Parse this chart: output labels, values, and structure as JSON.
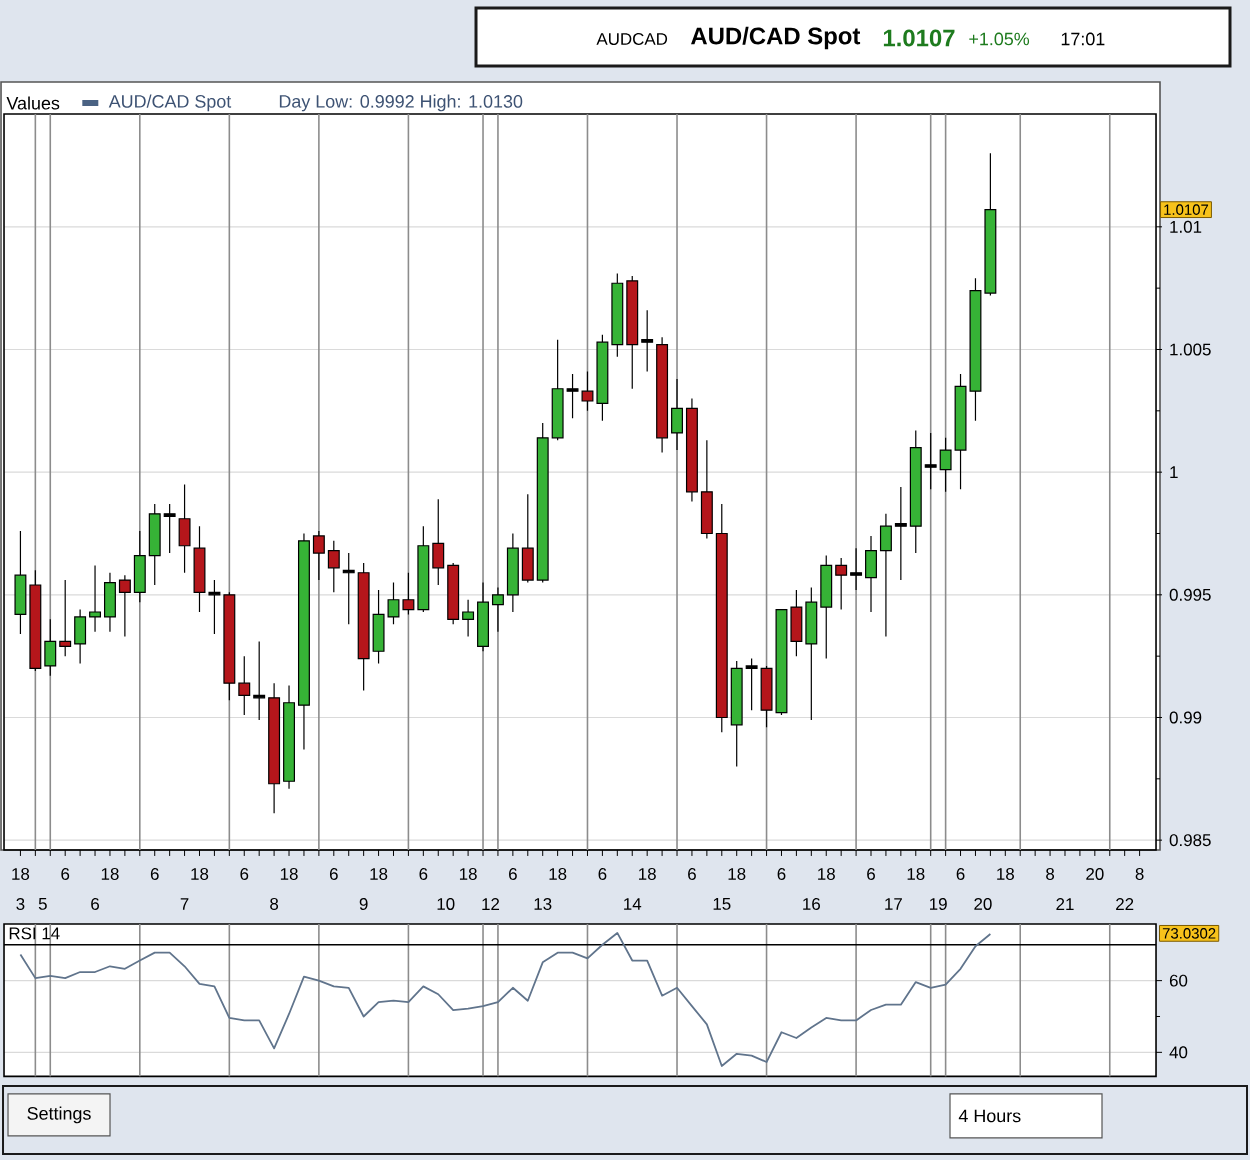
{
  "chart_data": [
    {
      "type": "candlestick",
      "title": "AUD/CAD Spot",
      "legend_title": "Values",
      "legend": "top left",
      "grid": true,
      "categories": [
        "18",
        null,
        null,
        "6",
        null,
        null,
        "18",
        null,
        null,
        "6",
        null,
        null,
        "18",
        null,
        null,
        "6",
        null,
        null,
        "18",
        null,
        null,
        "6",
        null,
        null,
        "18",
        null,
        null,
        "6",
        null,
        null,
        "18",
        null,
        null,
        "6",
        null,
        null,
        "18",
        null,
        null,
        "6",
        null,
        null,
        "18",
        null,
        null,
        "6",
        null,
        null,
        "18",
        null,
        null,
        "6",
        null,
        null,
        "18",
        null,
        null,
        "6",
        null,
        null,
        "18",
        null,
        null,
        "6",
        null,
        null,
        "18",
        null,
        null,
        "8",
        null,
        null,
        "20",
        null,
        null,
        "8"
      ],
      "series": [
        {
          "name": "AUD/CAD Spot",
          "color": "#4a6283",
          "colors": [
            "#36b336",
            "#b5161b",
            "#36b336",
            "#b5161b",
            "#36b336",
            "#36b336",
            "#36b336",
            "#b5161b",
            "#36b336",
            "#36b336",
            "#000000",
            "#b5161b",
            "#b5161b",
            "#000000",
            "#b5161b",
            "#b5161b",
            "#000000",
            "#b5161b",
            "#36b336",
            "#36b336",
            "#b5161b",
            "#b5161b",
            "#000000",
            "#b5161b",
            "#36b336",
            "#36b336",
            "#b5161b",
            "#36b336",
            "#b5161b",
            "#b5161b",
            "#36b336",
            "#36b336",
            "#36b336",
            "#36b336",
            "#b5161b",
            "#36b336",
            "#36b336",
            "#000000",
            "#b5161b",
            "#36b336",
            "#36b336",
            "#b5161b",
            "#000000",
            "#b5161b",
            "#36b336",
            "#b5161b",
            "#b5161b",
            "#b5161b",
            "#36b336",
            "#000000",
            "#b5161b",
            "#36b336",
            "#b5161b",
            "#36b336",
            "#36b336",
            "#b5161b",
            "#000000",
            "#36b336",
            "#36b336",
            "#000000",
            "#36b336",
            "#000000",
            "#36b336",
            "#36b336",
            "#36b336",
            "#36b336",
            null,
            null,
            null,
            null,
            null,
            null,
            null,
            null,
            null,
            null
          ],
          "ohlc": [
            [
              0.9942,
              0.9976,
              0.9934,
              0.9958
            ],
            [
              0.9954,
              0.996,
              0.9919,
              0.992
            ],
            [
              0.9921,
              0.994,
              0.9917,
              0.9931
            ],
            [
              0.9931,
              0.9956,
              0.9925,
              0.9929
            ],
            [
              0.993,
              0.9944,
              0.9922,
              0.9941
            ],
            [
              0.9941,
              0.9962,
              0.9935,
              0.9943
            ],
            [
              0.9941,
              0.9959,
              0.9935,
              0.9955
            ],
            [
              0.9956,
              0.9958,
              0.9933,
              0.9951
            ],
            [
              0.9951,
              0.9976,
              0.9947,
              0.9966
            ],
            [
              0.9966,
              0.9987,
              0.9954,
              0.9983
            ],
            [
              0.9982,
              0.9987,
              0.9967,
              0.9983
            ],
            [
              0.9981,
              0.9995,
              0.9959,
              0.997
            ],
            [
              0.9969,
              0.9978,
              0.9943,
              0.9951
            ],
            [
              0.995,
              0.9956,
              0.9934,
              0.9951
            ],
            [
              0.995,
              0.9951,
              0.9907,
              0.9914
            ],
            [
              0.9914,
              0.9925,
              0.9901,
              0.9909
            ],
            [
              0.9908,
              0.9931,
              0.9899,
              0.9909
            ],
            [
              0.9908,
              0.9914,
              0.9861,
              0.9873
            ],
            [
              0.9874,
              0.9913,
              0.9871,
              0.9906
            ],
            [
              0.9905,
              0.9975,
              0.9887,
              0.9972
            ],
            [
              0.9974,
              0.9976,
              0.9956,
              0.9967
            ],
            [
              0.9968,
              0.9972,
              0.9951,
              0.9961
            ],
            [
              0.9959,
              0.9967,
              0.9938,
              0.996
            ],
            [
              0.9959,
              0.9963,
              0.9911,
              0.9924
            ],
            [
              0.9927,
              0.9952,
              0.9922,
              0.9942
            ],
            [
              0.9941,
              0.9955,
              0.9938,
              0.9948
            ],
            [
              0.9948,
              0.9959,
              0.9942,
              0.9944
            ],
            [
              0.9944,
              0.9978,
              0.9943,
              0.997
            ],
            [
              0.9971,
              0.9989,
              0.9954,
              0.9961
            ],
            [
              0.9962,
              0.9963,
              0.9938,
              0.994
            ],
            [
              0.994,
              0.9948,
              0.9933,
              0.9943
            ],
            [
              0.9929,
              0.9955,
              0.9927,
              0.9947
            ],
            [
              0.9946,
              0.9953,
              0.9935,
              0.995
            ],
            [
              0.995,
              0.9975,
              0.9943,
              0.9969
            ],
            [
              0.9969,
              0.9991,
              0.9955,
              0.9956
            ],
            [
              0.9956,
              1.002,
              0.9955,
              1.0014
            ],
            [
              1.0014,
              1.0054,
              1.0013,
              1.0034
            ],
            [
              1.0033,
              1.004,
              1.0022,
              1.0034
            ],
            [
              1.0033,
              1.0041,
              1.0025,
              1.0029
            ],
            [
              1.0028,
              1.0056,
              1.0021,
              1.0053
            ],
            [
              1.0052,
              1.0081,
              1.0047,
              1.0077
            ],
            [
              1.0078,
              1.008,
              1.0034,
              1.0052
            ],
            [
              1.0053,
              1.0066,
              1.0041,
              1.0054
            ],
            [
              1.0052,
              1.0055,
              1.0008,
              1.0014
            ],
            [
              1.0016,
              1.0038,
              1.0009,
              1.0026
            ],
            [
              1.0026,
              1.003,
              0.9988,
              0.9992
            ],
            [
              0.9992,
              1.0013,
              0.9973,
              0.9975
            ],
            [
              0.9975,
              0.9987,
              0.9894,
              0.99
            ],
            [
              0.9897,
              0.9923,
              0.988,
              0.992
            ],
            [
              0.992,
              0.9924,
              0.9903,
              0.9921
            ],
            [
              0.992,
              0.9921,
              0.9896,
              0.9903
            ],
            [
              0.9902,
              0.9944,
              0.9901,
              0.9944
            ],
            [
              0.9945,
              0.9952,
              0.9925,
              0.9931
            ],
            [
              0.993,
              0.9953,
              0.9899,
              0.9947
            ],
            [
              0.9945,
              0.9966,
              0.9924,
              0.9962
            ],
            [
              0.9962,
              0.9965,
              0.9944,
              0.9958
            ],
            [
              0.9958,
              0.9969,
              0.9952,
              0.9959
            ],
            [
              0.9957,
              0.9974,
              0.9943,
              0.9968
            ],
            [
              0.9968,
              0.9983,
              0.9933,
              0.9978
            ],
            [
              0.9978,
              0.9994,
              0.9956,
              0.9979
            ],
            [
              0.9978,
              1.0017,
              0.9967,
              1.001
            ],
            [
              1.0002,
              1.0016,
              0.9993,
              1.0003
            ],
            [
              1.0001,
              1.0014,
              0.9992,
              1.0009
            ],
            [
              1.0009,
              1.004,
              0.9993,
              1.0035
            ],
            [
              1.0033,
              1.0079,
              1.0021,
              1.0074
            ],
            [
              1.0073,
              1.013,
              1.0072,
              1.0107
            ],
            null,
            null,
            null,
            null,
            null,
            null,
            null,
            null,
            null,
            null
          ]
        }
      ],
      "ylim": [
        0.9846,
        1.0146
      ],
      "yticks": [
        0.985,
        0.99,
        0.995,
        1,
        1.005,
        1.01
      ],
      "annotations": [
        "AUDCAD",
        "1.0107",
        "+1.05%",
        "17:01",
        "Day Low: 0.9992 High: 1.0130",
        {
          "text": "1.0107",
          "y": 1.0107
        },
        "3",
        "5",
        "6",
        "7",
        "8",
        "9",
        "10",
        "12",
        "13",
        "14",
        "15",
        "16",
        "17",
        "19",
        "20",
        "21",
        "22",
        "Settings",
        "4 Hours"
      ]
    },
    {
      "type": "line",
      "title": "RSI 14",
      "tick_labels": "y",
      "grid": true,
      "categories": [
        null,
        null,
        null,
        null,
        null,
        null,
        null,
        null,
        null,
        null,
        null,
        null,
        null,
        null,
        null,
        null,
        null,
        null,
        null,
        null,
        null,
        null,
        null,
        null,
        null,
        null,
        null,
        null,
        null,
        null,
        null,
        null,
        null,
        null,
        null,
        null,
        null,
        null,
        null,
        null,
        null,
        null,
        null,
        null,
        null,
        null,
        null,
        null,
        null,
        null,
        null,
        null,
        null,
        null,
        null,
        null,
        null,
        null,
        null,
        null,
        null,
        null,
        null,
        null,
        null,
        null,
        null,
        null,
        null,
        null,
        null,
        null,
        null,
        null,
        null,
        null
      ],
      "series": [
        {
          "color": "#60748c",
          "values": [
            67.3,
            60.7,
            61.3,
            60.7,
            62.4,
            62.4,
            64.0,
            63.3,
            65.6,
            67.8,
            67.8,
            64.0,
            59.1,
            58.4,
            49.6,
            48.9,
            48.9,
            41.1,
            50.7,
            61.1,
            60.0,
            58.4,
            58.0,
            50.0,
            54.0,
            54.4,
            54.0,
            58.4,
            56.2,
            51.8,
            52.2,
            52.9,
            54.0,
            58.0,
            54.4,
            65.1,
            67.8,
            67.8,
            66.2,
            70.0,
            73.3,
            65.6,
            65.6,
            55.8,
            58.0,
            52.9,
            47.8,
            36.2,
            39.6,
            39.1,
            37.3,
            45.6,
            44.0,
            46.9,
            49.6,
            48.9,
            48.9,
            51.8,
            53.3,
            53.3,
            59.6,
            58.0,
            58.9,
            63.3,
            69.6,
            73.0,
            null,
            null,
            null,
            null,
            null,
            null,
            null,
            null,
            null,
            null
          ]
        }
      ],
      "ylim": [
        33.3,
        75.8
      ],
      "yticks": [
        40,
        60
      ],
      "ref_lines": [
        {
          "axis": "y",
          "value": 70,
          "color": "#000000"
        }
      ],
      "annotations": [
        "73.0302"
      ]
    }
  ]
}
